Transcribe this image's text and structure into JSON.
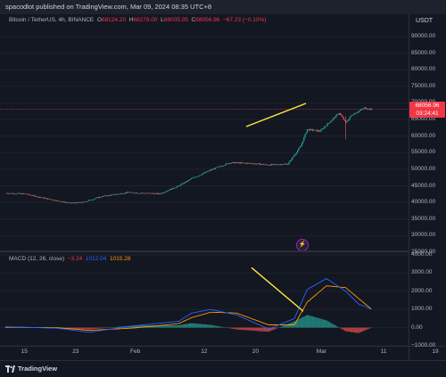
{
  "header": {
    "published_text": "spacodlot published on TradingView.com, Mar 09, 2024 08:35 UTC+8"
  },
  "legend": {
    "symbol": "Bitcoin / TetherUS, 4h, BINANCE",
    "o_label": "O",
    "o_value": "68124.20",
    "h_label": "H",
    "h_value": "68279.00",
    "l_label": "L",
    "l_value": "68005.05",
    "c_label": "C",
    "c_value": "68056.96",
    "change": "−67.23 (−0.10%)"
  },
  "price_axis": {
    "currency": "USDT",
    "labels": [
      "90000.00",
      "85000.00",
      "80000.00",
      "75000.00",
      "70000.00",
      "65000.00",
      "60000.00",
      "55000.00",
      "50000.00",
      "45000.00",
      "40000.00",
      "35000.00",
      "30000.00",
      "25000.00"
    ],
    "current_price": "68056.96",
    "countdown": "03:24:41"
  },
  "macd": {
    "title": "MACD (12, 26, close)",
    "hist": "−3.24",
    "macd": "1012.04",
    "signal": "1015.28",
    "axis_labels": [
      "4000.00",
      "3000.00",
      "2000.00",
      "1000.00",
      "0.00",
      "−1000.00"
    ]
  },
  "time_axis": {
    "labels": [
      "15",
      "23",
      "Feb",
      "12",
      "20",
      "Mar",
      "11",
      "19"
    ]
  },
  "footer": {
    "brand": "TradingView"
  },
  "colors": {
    "background": "#131722",
    "up": "#26a69a",
    "down": "#ef5350",
    "trendline": "#ffeb3b",
    "price_line": "#f23645",
    "macd_line": "#2962ff",
    "signal_line": "#ff9800"
  },
  "chart_data": {
    "type": "line",
    "price_series": {
      "x": [
        "2024-01-12",
        "2024-01-15",
        "2024-01-18",
        "2024-01-22",
        "2024-01-24",
        "2024-01-27",
        "2024-01-31",
        "2024-02-05",
        "2024-02-08",
        "2024-02-10",
        "2024-02-13",
        "2024-02-16",
        "2024-02-19",
        "2024-02-22",
        "2024-02-25",
        "2024-02-27",
        "2024-02-28",
        "2024-03-01",
        "2024-03-04",
        "2024-03-05",
        "2024-03-06",
        "2024-03-08",
        "2024-03-09"
      ],
      "close": [
        42800,
        42600,
        41300,
        39800,
        40000,
        41800,
        43000,
        42600,
        45000,
        47200,
        49800,
        52000,
        51800,
        51300,
        51600,
        57000,
        62000,
        61500,
        67000,
        64000,
        66500,
        68500,
        68057
      ]
    },
    "price_ylim": [
      25000,
      90000
    ],
    "macd_series": {
      "x": [
        "2024-01-12",
        "2024-01-20",
        "2024-01-25",
        "2024-02-01",
        "2024-02-08",
        "2024-02-10",
        "2024-02-13",
        "2024-02-17",
        "2024-02-22",
        "2024-02-26",
        "2024-02-28",
        "2024-03-02",
        "2024-03-05",
        "2024-03-07",
        "2024-03-09"
      ],
      "macd": [
        50,
        -30,
        -250,
        100,
        350,
        800,
        1000,
        700,
        -80,
        500,
        2100,
        2700,
        2000,
        1300,
        1012
      ],
      "signal": [
        20,
        0,
        -150,
        -20,
        220,
        550,
        850,
        800,
        150,
        150,
        1400,
        2300,
        2200,
        1600,
        1015
      ]
    },
    "macd_ylim": [
      -1000,
      4000
    ],
    "xlabel": "",
    "ylabel": "",
    "grid": true
  }
}
